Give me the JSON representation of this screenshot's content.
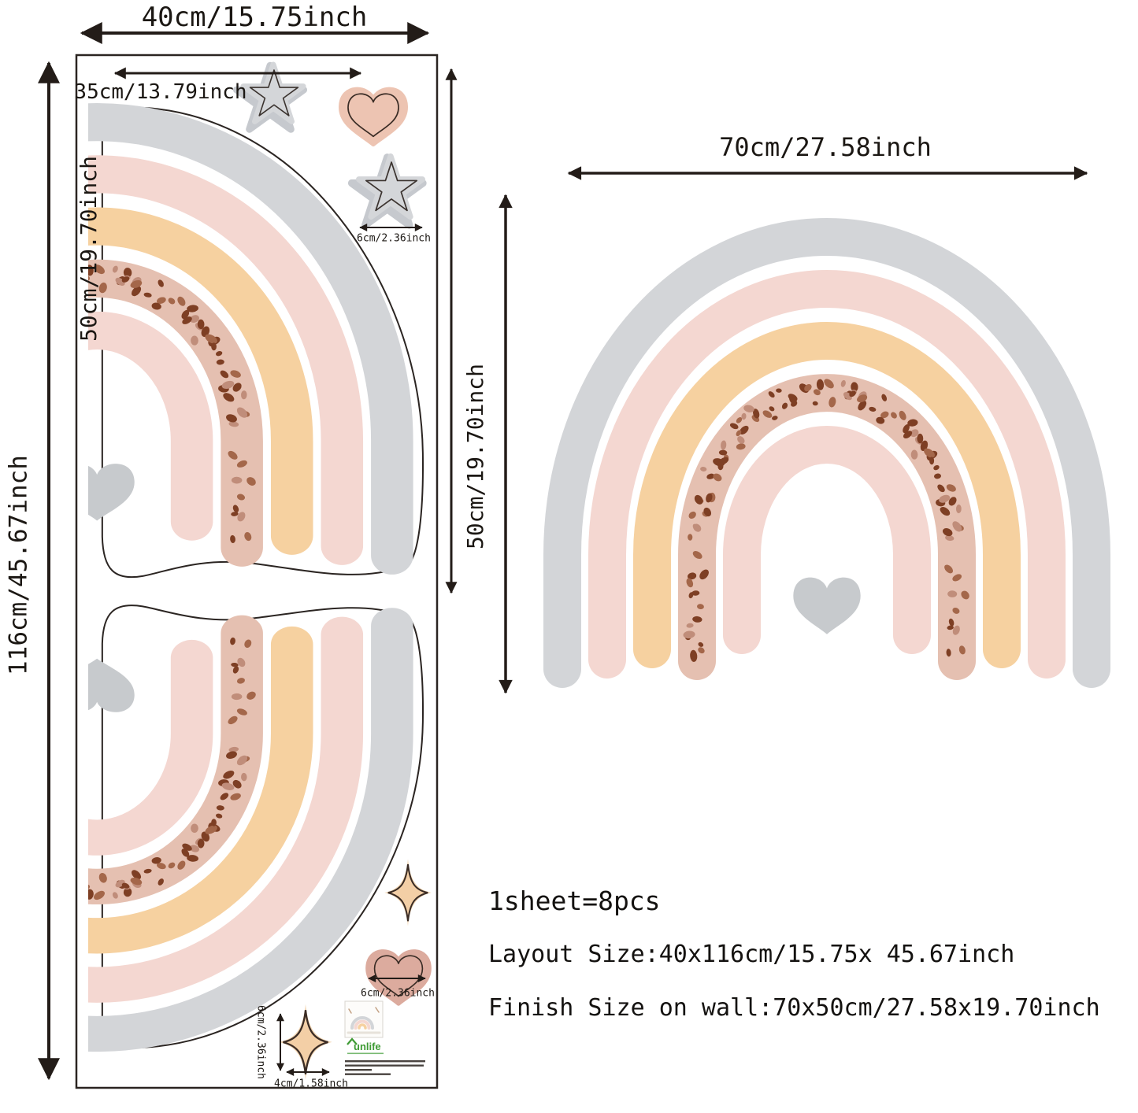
{
  "sheet": {
    "dim_width": "40cm/15.75inch",
    "dim_height": "116cm/45.67inch",
    "dim_piece_width": "35cm/13.79inch",
    "dim_piece_height": "50cm/19.70inch",
    "dim_star": "6cm/2.36inch",
    "dim_heart": "6cm/2.36inch",
    "dim_sparkle_height": "6cm/2.36inch",
    "dim_sparkle_width": "4cm/1.58inch",
    "brand": "unlife"
  },
  "wall_rainbow": {
    "dim_width": "70cm/27.58inch",
    "dim_height": "50cm/19.70inch"
  },
  "info": {
    "line1": "1sheet=8pcs",
    "line2": "Layout Size:40x116cm/15.75x 45.67inch",
    "line3": "Finish Size on wall:70x50cm/27.58x19.70inch"
  },
  "colors": {
    "band-gray": "#d3d5d8",
    "band-pink": "#f4d7d1",
    "band-orange": "#f6d1a0",
    "band-dotted": "#e5c0b1",
    "speckle-dark": "#7e3f24",
    "speckle-mid": "#a4674a",
    "speckle-light": "#c08d7a",
    "heart-gray": "#c7cacd",
    "sticker-star": "#d4d6d9",
    "sticker-star-halo": "#c6c9ce",
    "sticker-heart-top": "#edc4b2",
    "sticker-heart-bottom": "#dcab9e",
    "sticker-sparkle": "#f3cfa6",
    "sticker-sparkle-halo": "#f2d6b3",
    "outline": "#2b2522",
    "arrow": "#231c18",
    "brand-green": "#3f9b35"
  }
}
